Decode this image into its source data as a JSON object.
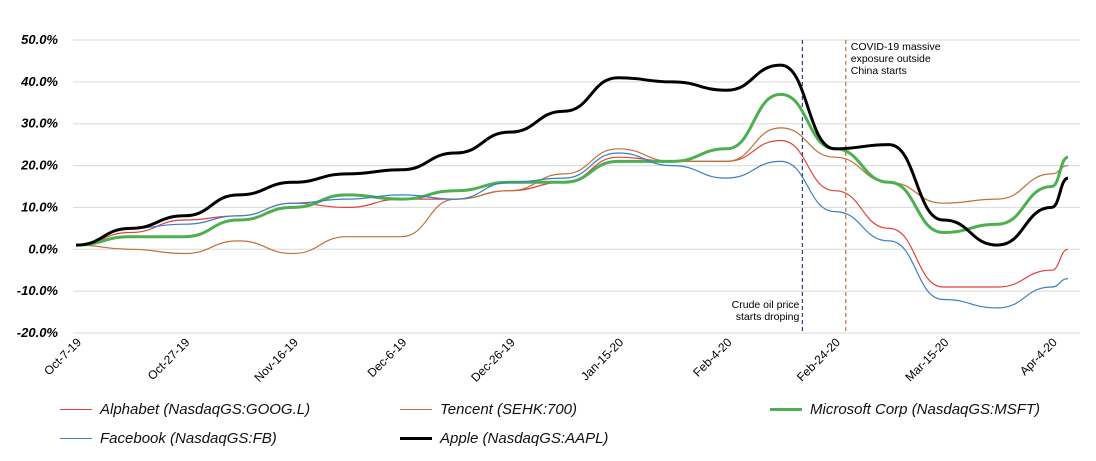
{
  "chart_data": {
    "type": "line",
    "x": [
      "2019-10-07",
      "2019-10-17",
      "2019-10-27",
      "2019-11-06",
      "2019-11-16",
      "2019-11-26",
      "2019-12-06",
      "2019-12-16",
      "2019-12-26",
      "2020-01-05",
      "2020-01-15",
      "2020-01-25",
      "2020-02-04",
      "2020-02-14",
      "2020-02-24",
      "2020-03-05",
      "2020-03-15",
      "2020-03-25",
      "2020-04-04",
      "2020-04-07"
    ],
    "x_tick_labels": [
      "Oct-7-19",
      "Oct-27-19",
      "Nov-16-19",
      "Dec-6-19",
      "Dec-26-19",
      "Jan-15-20",
      "Feb-4-20",
      "Feb-24-20",
      "Mar-15-20",
      "Apr-4-20"
    ],
    "ylim": [
      -20,
      50
    ],
    "y_tick_labels": [
      "50.0%",
      "40.0%",
      "30.0%",
      "20.0%",
      "10.0%",
      "0.0%",
      "-10.0%",
      "-20.0%"
    ],
    "grid": "horizontal",
    "legend_position": "bottom",
    "series": [
      {
        "name": "Alphabet (NasdaqGS:GOOG.L)",
        "color": "#e0403a",
        "width": 1.2,
        "values": [
          1,
          4,
          7,
          8,
          11,
          10,
          12,
          12,
          14,
          16,
          22,
          21,
          21,
          26,
          14,
          5,
          -9,
          -9,
          -5,
          0
        ]
      },
      {
        "name": "Tencent (SEHK:700)",
        "color": "#c0703a",
        "width": 1.2,
        "values": [
          1,
          0,
          -1,
          2,
          -1,
          3,
          3,
          12,
          14,
          18,
          24,
          21,
          21,
          29,
          22,
          16,
          11,
          12,
          18,
          20
        ]
      },
      {
        "name": "Microsoft Corp (NasdaqGS:MSFT)",
        "color": "#4caf50",
        "width": 3,
        "values": [
          1,
          3,
          3,
          7,
          10,
          13,
          12,
          14,
          16,
          16,
          21,
          21,
          24,
          37,
          24,
          16,
          4,
          6,
          15,
          22
        ]
      },
      {
        "name": "Facebook (NasdaqGS:FB)",
        "color": "#3b7ec0",
        "width": 1.2,
        "values": [
          1,
          5,
          6,
          8,
          11,
          12,
          13,
          12,
          16,
          17,
          23,
          20,
          17,
          21,
          9,
          2,
          -12,
          -14,
          -9,
          -7
        ]
      },
      {
        "name": "Apple (NasdaqGS:AAPL)",
        "color": "#000000",
        "width": 3,
        "values": [
          1,
          5,
          8,
          13,
          16,
          18,
          19,
          23,
          28,
          33,
          41,
          40,
          38,
          44,
          24,
          25,
          7,
          1,
          10,
          17
        ]
      }
    ],
    "annotations": [
      {
        "text_lines": [
          "Crude oil price",
          "starts droping"
        ],
        "x": "2020-02-18",
        "line_color": "#2b3a8f",
        "line_style": "dashed"
      },
      {
        "text_lines": [
          "COVID-19 massive",
          "exposure outside",
          "China starts"
        ],
        "x": "2020-02-26",
        "line_color": "#c0703a",
        "line_style": "dashed"
      }
    ]
  }
}
